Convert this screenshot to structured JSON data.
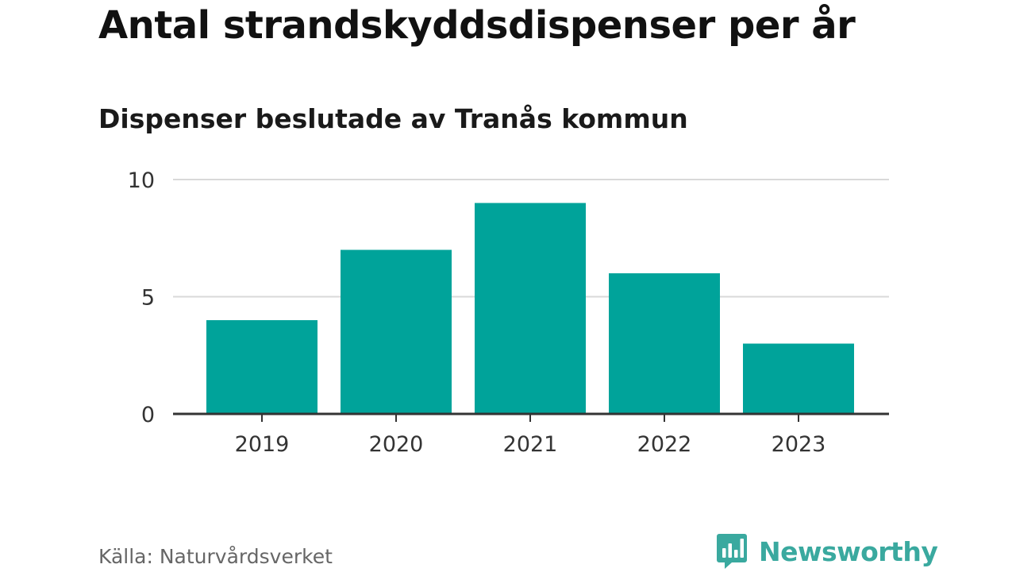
{
  "header": {
    "title": "Antal strandskyddsdispenser per år",
    "subtitle": "Dispenser beslutade av Tranås kommun"
  },
  "footer": {
    "source": "Källa: Naturvårdsverket",
    "brand": "Newsworthy",
    "brand_icon": "newsworthy-logo-icon"
  },
  "colors": {
    "bar": "#00a39a",
    "gridline": "#d9d9d9",
    "axis": "#333333",
    "brand": "#3aa99f"
  },
  "chart_data": {
    "type": "bar",
    "title": "Antal strandskyddsdispenser per år",
    "subtitle": "Dispenser beslutade av Tranås kommun",
    "xlabel": "",
    "ylabel": "",
    "categories": [
      "2019",
      "2020",
      "2021",
      "2022",
      "2023"
    ],
    "values": [
      4,
      7,
      9,
      6,
      3
    ],
    "ylim": [
      0,
      10
    ],
    "yticks": [
      0,
      5,
      10
    ],
    "ytick_labels": [
      "0",
      "5",
      "10"
    ],
    "grid": true,
    "legend": "none"
  }
}
